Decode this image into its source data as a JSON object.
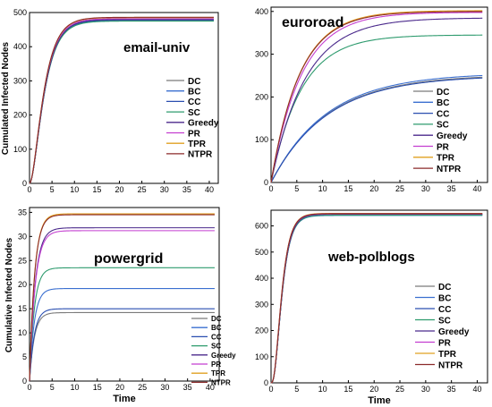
{
  "chart_data": [
    {
      "type": "line",
      "title": "email-univ",
      "xlabel": "",
      "ylabel": "Cumulated Infected Nodes",
      "xlim": [
        0,
        42
      ],
      "ylim": [
        0,
        500
      ],
      "xticks": [
        0,
        5,
        10,
        15,
        20,
        25,
        30,
        35,
        40
      ],
      "yticks": [
        0,
        100,
        200,
        300,
        400,
        500
      ],
      "legend": "center-right",
      "series": [
        {
          "name": "DC",
          "color": "#7a7a7a",
          "k": 0.42,
          "m": 2.05,
          "plateau": 478
        },
        {
          "name": "BC",
          "color": "#3a6fd0",
          "k": 0.42,
          "m": 2.05,
          "plateau": 476
        },
        {
          "name": "CC",
          "color": "#2a4fb0",
          "k": 0.42,
          "m": 2.05,
          "plateau": 477
        },
        {
          "name": "SC",
          "color": "#2e9b6e",
          "k": 0.42,
          "m": 2.05,
          "plateau": 475
        },
        {
          "name": "Greedy",
          "color": "#4b2a8c",
          "k": 0.42,
          "m": 2.05,
          "plateau": 480
        },
        {
          "name": "PR",
          "color": "#c43fd0",
          "k": 0.43,
          "m": 2.05,
          "plateau": 482
        },
        {
          "name": "TPR",
          "color": "#e0a020",
          "k": 0.43,
          "m": 2.05,
          "plateau": 485
        },
        {
          "name": "NTPR",
          "color": "#8b2a2a",
          "k": 0.43,
          "m": 2.05,
          "plateau": 486
        }
      ]
    },
    {
      "type": "line",
      "title": "euroroad",
      "xlabel": "",
      "ylabel": "",
      "xlim": [
        0,
        42
      ],
      "ylim": [
        0,
        410
      ],
      "xticks": [
        0,
        5,
        10,
        15,
        20,
        25,
        30,
        35,
        40
      ],
      "yticks": [
        0,
        100,
        200,
        300,
        400
      ],
      "legend": "bottom-right",
      "series": [
        {
          "name": "DC",
          "color": "#7a7a7a",
          "k": 0.092,
          "m": 1.0,
          "plateau": 252
        },
        {
          "name": "BC",
          "color": "#3a6fd0",
          "k": 0.092,
          "m": 1.0,
          "plateau": 256
        },
        {
          "name": "CC",
          "color": "#2a4fb0",
          "k": 0.092,
          "m": 1.0,
          "plateau": 250
        },
        {
          "name": "SC",
          "color": "#2e9b6e",
          "k": 0.17,
          "m": 1.0,
          "plateau": 345
        },
        {
          "name": "Greedy",
          "color": "#4b2a8c",
          "k": 0.15,
          "m": 1.0,
          "plateau": 385
        },
        {
          "name": "PR",
          "color": "#c43fd0",
          "k": 0.17,
          "m": 1.0,
          "plateau": 398
        },
        {
          "name": "TPR",
          "color": "#e0a020",
          "k": 0.18,
          "m": 1.0,
          "plateau": 402
        },
        {
          "name": "NTPR",
          "color": "#8b2a2a",
          "k": 0.18,
          "m": 1.0,
          "plateau": 400
        }
      ]
    },
    {
      "type": "line",
      "title": "powergrid",
      "xlabel": "Time",
      "ylabel": "Cumulative Infected Nodes",
      "xlim": [
        0,
        42
      ],
      "ylim": [
        0,
        36
      ],
      "xticks": [
        0,
        5,
        10,
        15,
        20,
        25,
        30,
        35,
        40
      ],
      "yticks": [
        0,
        5,
        10,
        15,
        20,
        25,
        30,
        35
      ],
      "legend": "bottom-right",
      "series": [
        {
          "name": "DC",
          "color": "#7a7a7a",
          "k": 0.95,
          "m": 1.0,
          "plateau": 14.2
        },
        {
          "name": "BC",
          "color": "#3a6fd0",
          "k": 0.95,
          "m": 1.0,
          "plateau": 19.2
        },
        {
          "name": "CC",
          "color": "#2a4fb0",
          "k": 0.95,
          "m": 1.0,
          "plateau": 15.0
        },
        {
          "name": "SC",
          "color": "#2e9b6e",
          "k": 0.95,
          "m": 1.0,
          "plateau": 23.5
        },
        {
          "name": "Greedy",
          "color": "#4b2a8c",
          "k": 0.8,
          "m": 1.0,
          "plateau": 31.8
        },
        {
          "name": "PR",
          "color": "#c43fd0",
          "k": 0.8,
          "m": 1.0,
          "plateau": 31.2
        },
        {
          "name": "TPR",
          "color": "#e0a020",
          "k": 0.9,
          "m": 1.0,
          "plateau": 34.7
        },
        {
          "name": "NTPR",
          "color": "#8b2a2a",
          "k": 0.9,
          "m": 1.0,
          "plateau": 34.5
        }
      ]
    },
    {
      "type": "line",
      "title": "web-polblogs",
      "xlabel": "Time",
      "ylabel": "",
      "xlim": [
        0,
        42
      ],
      "ylim": [
        0,
        660
      ],
      "xticks": [
        0,
        5,
        10,
        15,
        20,
        25,
        30,
        35,
        40
      ],
      "yticks": [
        0,
        100,
        200,
        300,
        400,
        500,
        600
      ],
      "legend": "bottom-right",
      "series": [
        {
          "name": "DC",
          "color": "#7a7a7a",
          "k": 0.8,
          "m": 3.2,
          "plateau": 642
        },
        {
          "name": "BC",
          "color": "#3a6fd0",
          "k": 0.8,
          "m": 3.2,
          "plateau": 640
        },
        {
          "name": "CC",
          "color": "#2a4fb0",
          "k": 0.8,
          "m": 3.2,
          "plateau": 643
        },
        {
          "name": "SC",
          "color": "#2e9b6e",
          "k": 0.8,
          "m": 3.2,
          "plateau": 641
        },
        {
          "name": "Greedy",
          "color": "#4b2a8c",
          "k": 0.8,
          "m": 3.2,
          "plateau": 645
        },
        {
          "name": "PR",
          "color": "#c43fd0",
          "k": 0.82,
          "m": 3.2,
          "plateau": 646
        },
        {
          "name": "TPR",
          "color": "#e0a020",
          "k": 0.82,
          "m": 3.2,
          "plateau": 648
        },
        {
          "name": "NTPR",
          "color": "#8b2a2a",
          "k": 0.82,
          "m": 3.2,
          "plateau": 647
        }
      ]
    }
  ]
}
